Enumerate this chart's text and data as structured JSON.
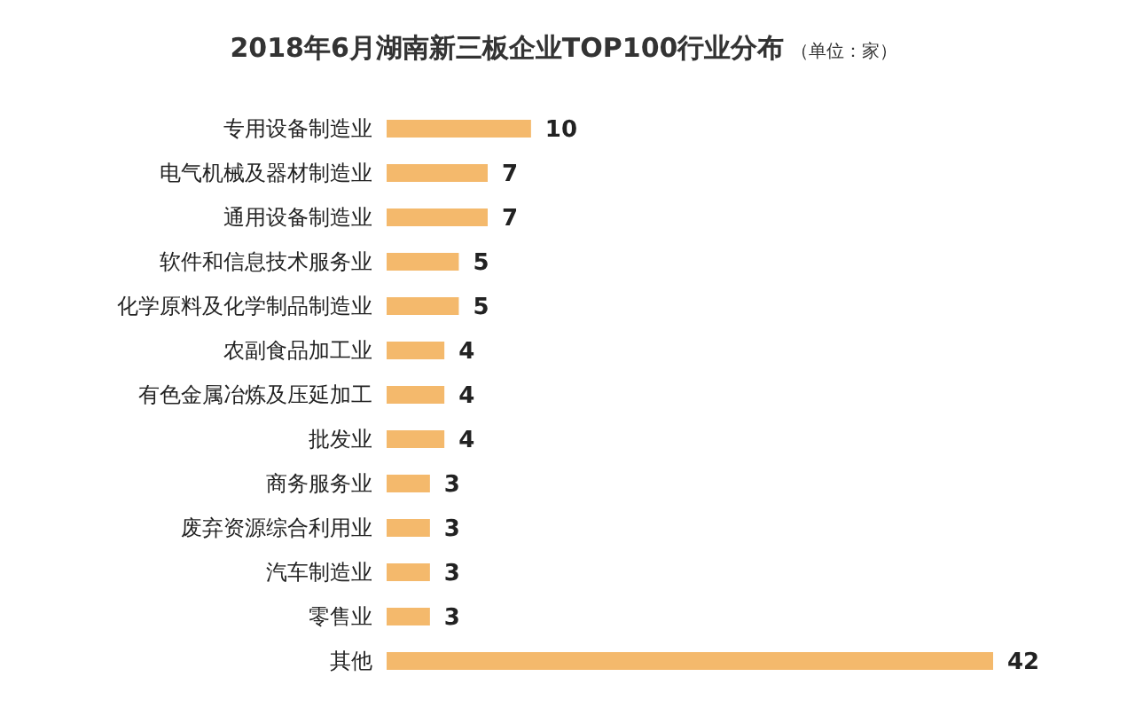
{
  "chart_data": {
    "type": "bar",
    "orientation": "horizontal",
    "title": "2018年6月湖南新三板企业TOP100行业分布",
    "subtitle": "（单位：家）",
    "categories": [
      "专用设备制造业",
      "电气机械及器材制造业",
      "通用设备制造业",
      "软件和信息技术服务业",
      "化学原料及化学制品制造业",
      "农副食品加工业",
      "有色金属冶炼及压延加工",
      "批发业",
      "商务服务业",
      "废弃资源综合利用业",
      "汽车制造业",
      "零售业",
      "其他"
    ],
    "values": [
      10,
      7,
      7,
      5,
      5,
      4,
      4,
      4,
      3,
      3,
      3,
      3,
      42
    ],
    "color": "#f4b96c",
    "data_labels": true
  }
}
